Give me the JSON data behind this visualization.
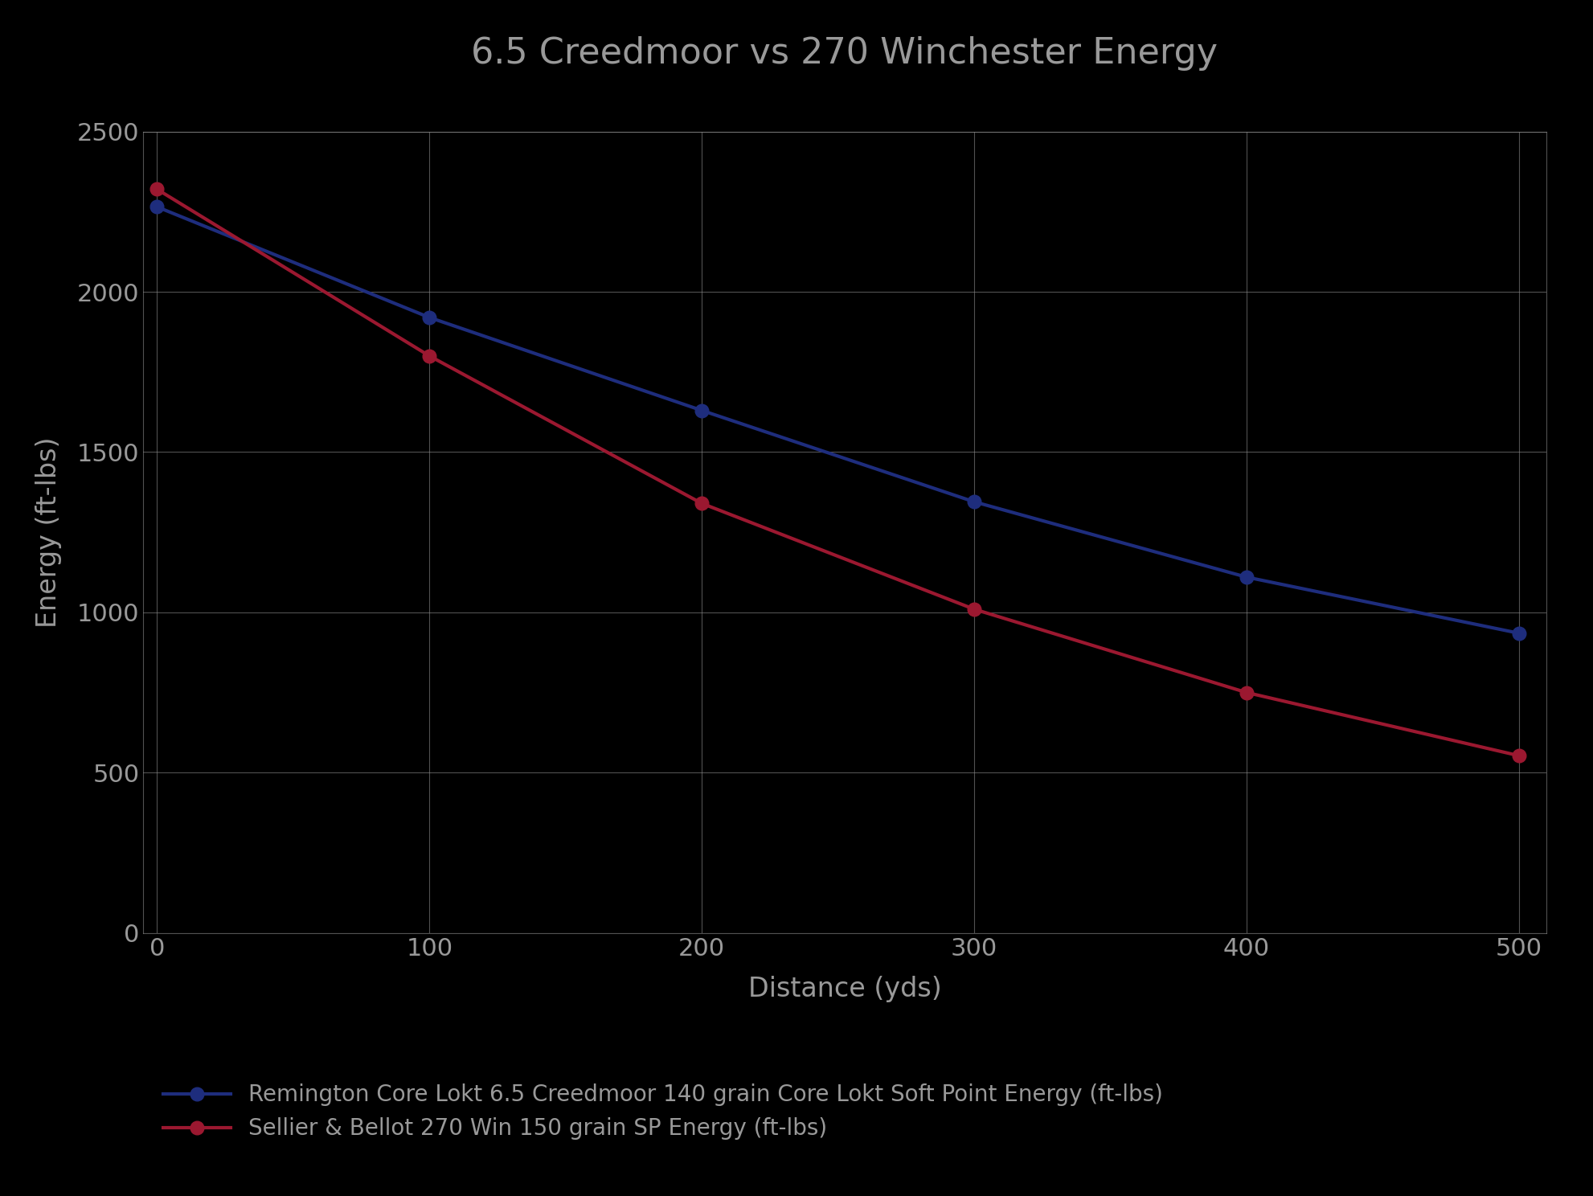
{
  "title": "6.5 Creedmoor vs 270 Winchester Energy",
  "xlabel": "Distance (yds)",
  "ylabel": "Energy (ft-lbs)",
  "background_color": "#000000",
  "plot_bg_color": "#000000",
  "grid_color": "#888888",
  "text_color": "#999999",
  "series": [
    {
      "label": "Remington Core Lokt 6.5 Creedmoor 140 grain Core Lokt Soft Point Energy (ft-lbs)",
      "x": [
        0,
        100,
        200,
        300,
        400,
        500
      ],
      "y": [
        2265,
        1920,
        1630,
        1345,
        1110,
        935
      ],
      "color": "#1e2d7d",
      "marker": "o",
      "linewidth": 3.0
    },
    {
      "label": "Sellier & Bellot 270 Win 150 grain SP Energy (ft-lbs)",
      "x": [
        0,
        100,
        200,
        300,
        400,
        500
      ],
      "y": [
        2320,
        1800,
        1340,
        1010,
        750,
        553
      ],
      "color": "#9b1830",
      "marker": "o",
      "linewidth": 3.0
    }
  ],
  "xlim": [
    -5,
    510
  ],
  "ylim": [
    0,
    2500
  ],
  "xticks": [
    0,
    100,
    200,
    300,
    400,
    500
  ],
  "yticks": [
    0,
    500,
    1000,
    1500,
    2000,
    2500
  ],
  "title_fontsize": 32,
  "axis_label_fontsize": 24,
  "tick_fontsize": 22,
  "legend_fontsize": 20,
  "marker_size": 12
}
